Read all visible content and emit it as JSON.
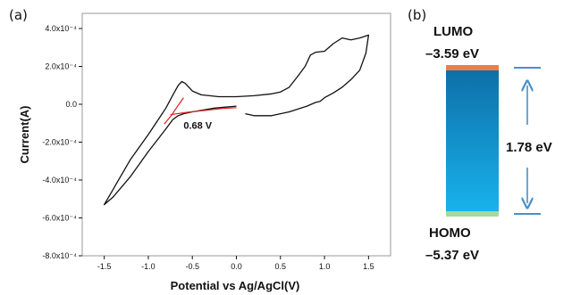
{
  "chart_data": [
    {
      "type": "line",
      "panel_label": "(a)",
      "xlabel": "Potential vs Ag/AgCl(V)",
      "ylabel": "Current(A)",
      "xlim": [
        -1.75,
        1.75
      ],
      "ylim": [
        -0.0008,
        0.00048
      ],
      "x_ticks": [
        -1.5,
        -1.0,
        -0.5,
        0.0,
        0.5,
        1.0,
        1.5
      ],
      "x_tick_labels": [
        "-1.5",
        "-1.0",
        "-0.5",
        "0.0",
        "0.5",
        "1.0",
        "1.5"
      ],
      "y_ticks": [
        0.0004,
        0.0002,
        0.0,
        -0.0002,
        -0.0004,
        -0.0006,
        -0.0008
      ],
      "y_tick_labels": [
        "4.0x10⁻⁴",
        "2.0x10⁻⁴",
        "0.0",
        "-2.0x10⁻⁴",
        "-4.0x10⁻⁴",
        "-6.0x10⁻⁴",
        "-8.0x10⁻⁴"
      ],
      "grid": false,
      "series": [
        {
          "color": "#111111",
          "x": [
            0.0,
            -0.25,
            -0.5,
            -0.6,
            -0.66,
            -0.72,
            -0.8,
            -1.0,
            -1.2,
            -1.4,
            -1.5,
            -1.45,
            -1.35,
            -1.2,
            -1.0,
            -0.9,
            -0.8,
            -0.72,
            -0.66,
            -0.62,
            -0.58,
            -0.5,
            -0.4,
            -0.2,
            0.0,
            0.2,
            0.4,
            0.5,
            0.6,
            0.7,
            0.78,
            0.84,
            0.9,
            1.0,
            1.1,
            1.2,
            1.3,
            1.4,
            1.5,
            1.47,
            1.4,
            1.3,
            1.2,
            1.1,
            1.0,
            0.95,
            0.9,
            0.8,
            0.6,
            0.4,
            0.2,
            0.1
          ],
          "y": [
            -1e-05,
            -2e-05,
            -4e-05,
            -5e-05,
            -6e-05,
            -8e-05,
            -0.00013,
            -0.00025,
            -0.00038,
            -0.00049,
            -0.00053,
            -0.00049,
            -0.00041,
            -0.00029,
            -0.00016,
            -9e-05,
            -2e-05,
            5e-05,
            0.0001,
            0.00012,
            0.00011,
            7e-05,
            5e-05,
            4e-05,
            4e-05,
            4.5e-05,
            5.5e-05,
            6.5e-05,
            9e-05,
            0.00015,
            0.0002,
            0.00026,
            0.000275,
            0.00028,
            0.00032,
            0.00035,
            0.00034,
            0.00035,
            0.000365,
            0.00027,
            0.00018,
            0.00013,
            9e-05,
            6e-05,
            3.5e-05,
            1.5e-05,
            1e-05,
            -1e-05,
            -4e-05,
            -6e-05,
            -6e-05,
            -5e-05
          ]
        },
        {
          "color": "#e02020",
          "x": [
            -0.75,
            -0.55,
            -0.35,
            -0.15,
            0.0
          ],
          "y": [
            -5.5e-05,
            -4.2e-05,
            -3.2e-05,
            -2.2e-05,
            -1.8e-05
          ]
        },
        {
          "color": "#e02020",
          "x": [
            -0.82,
            -0.74,
            -0.66,
            -0.6
          ],
          "y": [
            -0.000105,
            -6e-05,
            -5e-06,
            3.5e-05
          ]
        }
      ],
      "annotations": [
        {
          "text": "0.68 V",
          "x": -0.6,
          "y": -0.00013
        }
      ]
    },
    {
      "type": "bar",
      "panel_label": "(b)",
      "lumo_label": "LUMO",
      "lumo_value": "–3.59 eV",
      "homo_label": "HOMO",
      "homo_value": "–5.37 eV",
      "gap_label": "1.78 eV",
      "lumo_ev": -3.59,
      "homo_ev": -5.37,
      "colors": {
        "lumo_band": "#e8804a",
        "homo_band": "#a8d89a",
        "gap_top": "#0e6fa8",
        "gap_bottom": "#18b2ec",
        "arrow": "#4a90c8"
      }
    }
  ]
}
